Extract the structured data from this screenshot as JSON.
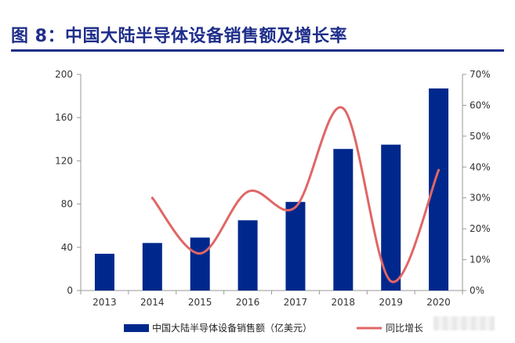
{
  "page": {
    "title": "图 8：中国大陆半导体设备销售额及增长率",
    "colors": {
      "title": "#1f2e8a",
      "bar": "#00288c",
      "line": "#e06666"
    }
  },
  "chart_data": {
    "type": "bar",
    "title": "图 8：中国大陆半导体设备销售额及增长率",
    "categories": [
      "2013",
      "2014",
      "2015",
      "2016",
      "2017",
      "2018",
      "2019",
      "2020"
    ],
    "series": [
      {
        "name": "中国大陆半导体设备销售额（亿美元）",
        "type": "bar",
        "axis": "left",
        "color": "#00288c",
        "values": [
          34,
          44,
          49,
          65,
          82,
          131,
          135,
          187
        ]
      },
      {
        "name": "同比增长",
        "type": "line",
        "axis": "right",
        "color": "#e06666",
        "values": [
          null,
          0.3,
          0.12,
          0.32,
          0.27,
          0.59,
          0.03,
          0.39
        ]
      }
    ],
    "y_left": {
      "min": 0,
      "max": 200,
      "ticks": [
        0,
        40,
        80,
        120,
        160,
        200
      ]
    },
    "y_right": {
      "min": 0,
      "max": 0.7,
      "ticks": [
        0,
        0.1,
        0.2,
        0.3,
        0.4,
        0.5,
        0.6,
        0.7
      ],
      "tick_labels": [
        "0%",
        "10%",
        "20%",
        "30%",
        "40%",
        "50%",
        "60%",
        "70%"
      ]
    },
    "legend": {
      "position": "bottom",
      "items": [
        "中国大陆半导体设备销售额（亿美元）",
        "同比增长"
      ]
    },
    "grid": false
  }
}
